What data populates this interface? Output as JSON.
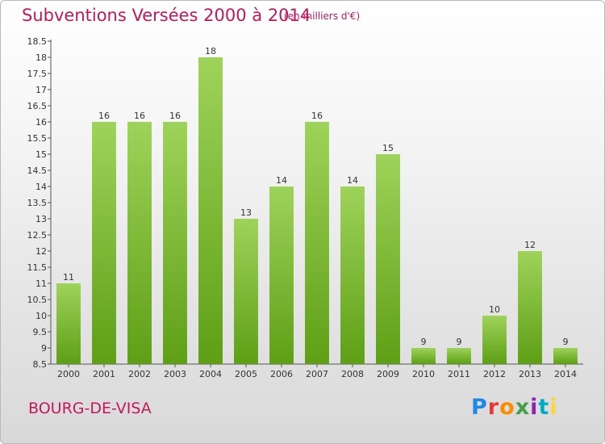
{
  "header": {
    "title": "Subventions Versées 2000 à 2014",
    "unit": "(en milliers d'€)"
  },
  "footer": {
    "commune": "BOURG-DE-VISA",
    "logo": "Proxiti",
    "logo_colors": [
      "#1e88e5",
      "#e53935",
      "#fb8c00",
      "#43a047",
      "#8e24aa",
      "#00acc1",
      "#fdd835"
    ]
  },
  "colors": {
    "bar_top": "#9ed35a",
    "bar_bottom": "#5e9f16",
    "axis": "#555555",
    "title": "#c2185b"
  },
  "chart_data": {
    "type": "bar",
    "title": "Subventions Versées 2000 à 2014",
    "categories": [
      "2000",
      "2001",
      "2002",
      "2003",
      "2004",
      "2005",
      "2006",
      "2007",
      "2008",
      "2009",
      "2010",
      "2011",
      "2012",
      "2013",
      "2014"
    ],
    "values": [
      11,
      16,
      16,
      16,
      18,
      13,
      14,
      16,
      14,
      15,
      9,
      9,
      10,
      12,
      9
    ],
    "ylim": [
      8.5,
      18.5
    ],
    "yticks": [
      "8.5",
      "9",
      "9.5",
      "10",
      "10.5",
      "11",
      "11.5",
      "12",
      "12.5",
      "13",
      "13.5",
      "14",
      "14.5",
      "15",
      "15.5",
      "16",
      "16.5",
      "17",
      "17.5",
      "18",
      "18.5"
    ],
    "grid": false,
    "xlabel": "",
    "ylabel": ""
  }
}
